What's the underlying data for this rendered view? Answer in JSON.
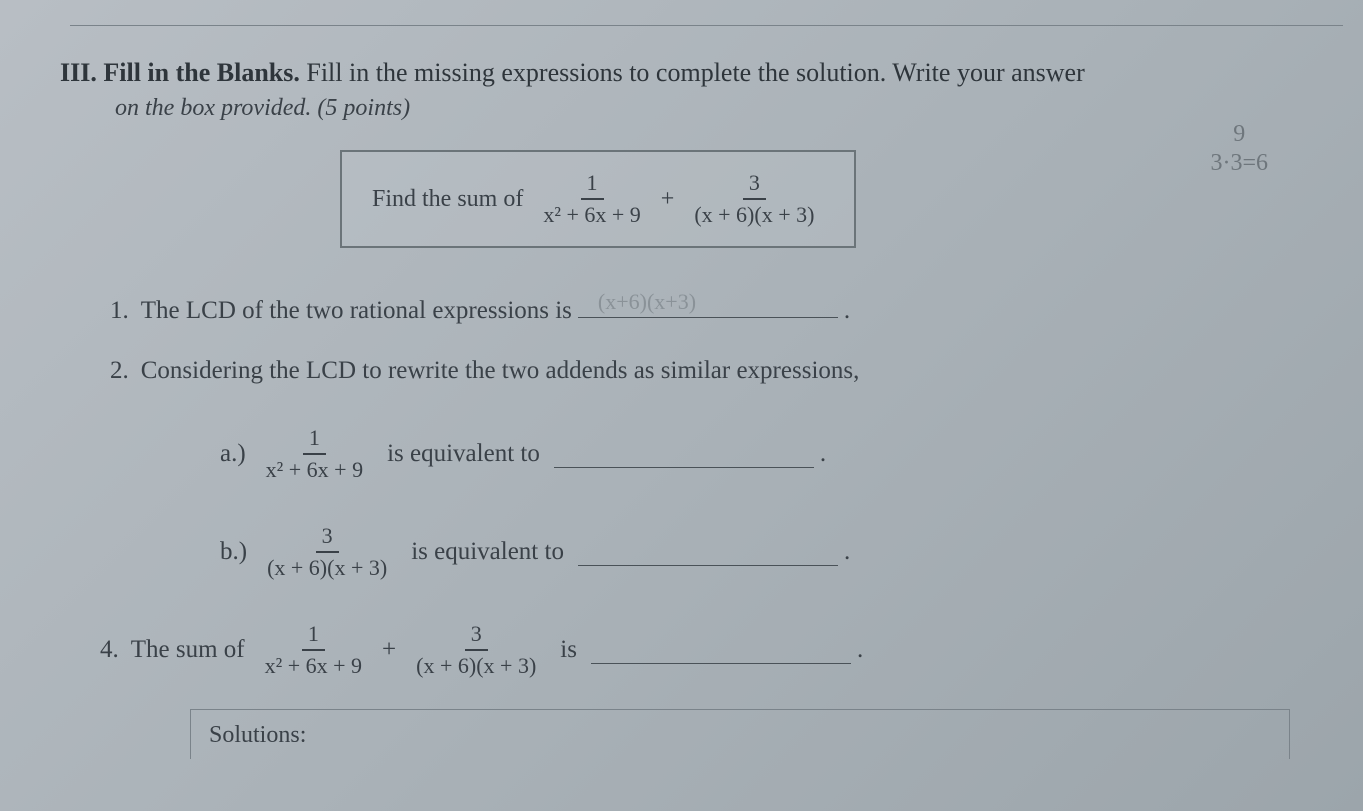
{
  "page": {
    "background_color": "#aab2b8",
    "text_color": "#3a4148",
    "handwriting_color": "#6e767c"
  },
  "header": {
    "section_number": "III.",
    "section_title": "Fill in the Blanks.",
    "instructions": "Fill in the missing expressions to complete the solution. Write your answer",
    "instructions_line2": "on the box provided.",
    "points": "(5 points)"
  },
  "problem": {
    "lead_text": "Find the sum of",
    "frac1_num": "1",
    "frac1_den": "x² + 6x + 9",
    "operator": "+",
    "frac2_num": "3",
    "frac2_den": "(x + 6)(x + 3)"
  },
  "handwriting": {
    "top_line1": "9",
    "top_line2": "3·3=6",
    "q1_answer": "(x+6)(x+3)"
  },
  "q1": {
    "number": "1.",
    "text": "The LCD of the two rational expressions is",
    "end": "."
  },
  "q2": {
    "number": "2.",
    "text": "Considering the LCD to rewrite the two addends as similar expressions,"
  },
  "q2a": {
    "label": "a.)",
    "frac_num": "1",
    "frac_den": "x² + 6x + 9",
    "text": "is equivalent to",
    "end": "."
  },
  "q2b": {
    "label": "b.)",
    "frac_num": "3",
    "frac_den": "(x + 6)(x + 3)",
    "text": "is equivalent to",
    "end": "."
  },
  "q4": {
    "number": "4.",
    "lead": "The sum of",
    "frac1_num": "1",
    "frac1_den": "x² + 6x + 9",
    "operator": "+",
    "frac2_num": "3",
    "frac2_den": "(x + 6)(x + 3)",
    "text": "is",
    "end": "."
  },
  "solutions": {
    "label": "Solutions:"
  }
}
